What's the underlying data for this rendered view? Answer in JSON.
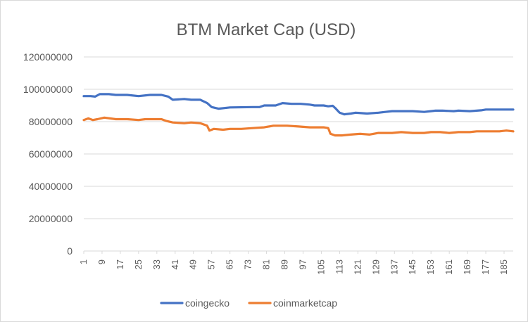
{
  "chart_data": {
    "type": "line",
    "title": "BTM Market Cap (USD)",
    "xlabel": "",
    "ylabel": "",
    "ylim": [
      0,
      120000000
    ],
    "yticks": [
      "0",
      "20000000",
      "40000000",
      "60000000",
      "80000000",
      "100000000",
      "120000000"
    ],
    "xlim": [
      1,
      189
    ],
    "xticks": [
      1,
      9,
      17,
      25,
      33,
      41,
      49,
      57,
      65,
      73,
      81,
      89,
      97,
      105,
      113,
      121,
      129,
      137,
      145,
      153,
      161,
      169,
      177,
      185
    ],
    "grid": true,
    "legend_position": "bottom",
    "series": [
      {
        "name": "coingecko",
        "color": "#4472c4",
        "points": [
          [
            1,
            95800000
          ],
          [
            4,
            95800000
          ],
          [
            6,
            95500000
          ],
          [
            8,
            97000000
          ],
          [
            12,
            97000000
          ],
          [
            15,
            96500000
          ],
          [
            20,
            96500000
          ],
          [
            25,
            95800000
          ],
          [
            30,
            96500000
          ],
          [
            35,
            96500000
          ],
          [
            38,
            95500000
          ],
          [
            40,
            93500000
          ],
          [
            45,
            94000000
          ],
          [
            48,
            93500000
          ],
          [
            52,
            93500000
          ],
          [
            55,
            91500000
          ],
          [
            57,
            89000000
          ],
          [
            60,
            88000000
          ],
          [
            65,
            88800000
          ],
          [
            75,
            89000000
          ],
          [
            78,
            89000000
          ],
          [
            80,
            90000000
          ],
          [
            85,
            90000000
          ],
          [
            88,
            91500000
          ],
          [
            92,
            91000000
          ],
          [
            96,
            91000000
          ],
          [
            100,
            90500000
          ],
          [
            102,
            90000000
          ],
          [
            106,
            90000000
          ],
          [
            108,
            89500000
          ],
          [
            110,
            89800000
          ],
          [
            111,
            88500000
          ],
          [
            113,
            85500000
          ],
          [
            115,
            84500000
          ],
          [
            118,
            85000000
          ],
          [
            120,
            85500000
          ],
          [
            125,
            85000000
          ],
          [
            130,
            85500000
          ],
          [
            133,
            86000000
          ],
          [
            136,
            86500000
          ],
          [
            140,
            86500000
          ],
          [
            145,
            86500000
          ],
          [
            150,
            86000000
          ],
          [
            153,
            86500000
          ],
          [
            155,
            86800000
          ],
          [
            158,
            86800000
          ],
          [
            163,
            86500000
          ],
          [
            165,
            86800000
          ],
          [
            170,
            86500000
          ],
          [
            175,
            87000000
          ],
          [
            177,
            87500000
          ],
          [
            180,
            87500000
          ],
          [
            185,
            87500000
          ],
          [
            189,
            87500000
          ]
        ]
      },
      {
        "name": "coinmarketcap",
        "color": "#ed7d31",
        "points": [
          [
            1,
            81000000
          ],
          [
            3,
            82000000
          ],
          [
            5,
            81000000
          ],
          [
            7,
            81500000
          ],
          [
            10,
            82500000
          ],
          [
            15,
            81500000
          ],
          [
            20,
            81500000
          ],
          [
            25,
            81000000
          ],
          [
            28,
            81500000
          ],
          [
            35,
            81500000
          ],
          [
            37,
            80500000
          ],
          [
            40,
            79500000
          ],
          [
            45,
            79000000
          ],
          [
            48,
            79500000
          ],
          [
            52,
            79000000
          ],
          [
            55,
            77500000
          ],
          [
            56,
            74500000
          ],
          [
            58,
            75500000
          ],
          [
            62,
            75000000
          ],
          [
            65,
            75500000
          ],
          [
            70,
            75500000
          ],
          [
            75,
            76000000
          ],
          [
            80,
            76500000
          ],
          [
            84,
            77500000
          ],
          [
            90,
            77500000
          ],
          [
            95,
            77000000
          ],
          [
            100,
            76500000
          ],
          [
            106,
            76500000
          ],
          [
            108,
            76000000
          ],
          [
            109,
            72500000
          ],
          [
            111,
            71500000
          ],
          [
            114,
            71500000
          ],
          [
            118,
            72000000
          ],
          [
            122,
            72500000
          ],
          [
            126,
            72000000
          ],
          [
            130,
            73000000
          ],
          [
            136,
            73000000
          ],
          [
            140,
            73500000
          ],
          [
            145,
            73000000
          ],
          [
            150,
            73000000
          ],
          [
            153,
            73500000
          ],
          [
            157,
            73500000
          ],
          [
            161,
            73000000
          ],
          [
            165,
            73500000
          ],
          [
            170,
            73500000
          ],
          [
            173,
            74000000
          ],
          [
            178,
            74000000
          ],
          [
            183,
            74000000
          ],
          [
            186,
            74500000
          ],
          [
            189,
            74000000
          ]
        ]
      }
    ]
  }
}
